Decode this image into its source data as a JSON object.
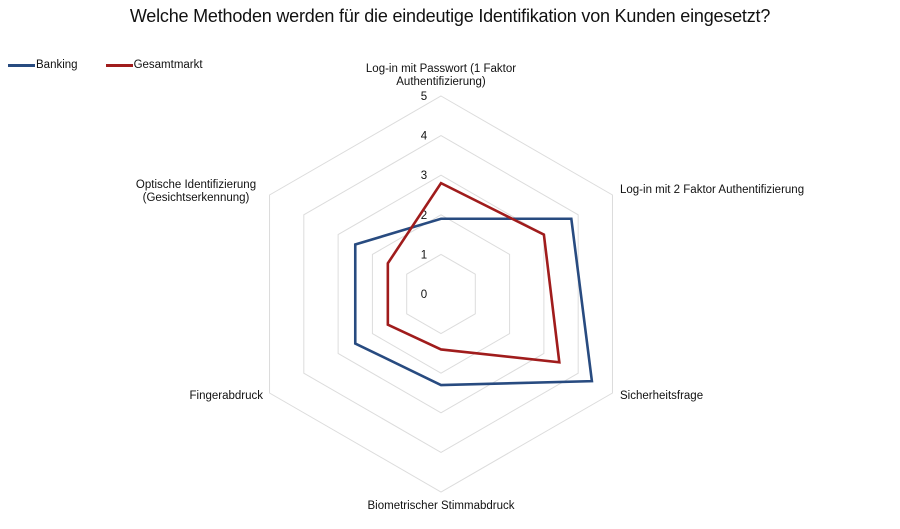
{
  "chart_data": {
    "type": "radar",
    "title": "Welche Methoden werden für die eindeutige Identifikation von Kunden eingesetzt?",
    "categories": [
      "Log-in mit Passwort (1 Faktor Authentifizierung)",
      "Log-in mit 2 Faktor Authentifizierung",
      "Sicherheitsfrage",
      "Biometrischer Stimmabdruck",
      "Fingerabdruck",
      "Optische Identifizierung (Gesichtserkennung)"
    ],
    "category_label_lines": [
      [
        "Log-in mit Passwort (1 Faktor",
        "Authentifizierung)"
      ],
      [
        "Log-in mit 2 Faktor Authentifizierung"
      ],
      [
        "Sicherheitsfrage"
      ],
      [
        "Biometrischer Stimmabdruck"
      ],
      [
        "Fingerabdruck"
      ],
      [
        "Optische Identifizierung",
        "(Gesichtserkennung)"
      ]
    ],
    "series": [
      {
        "name": "Banking",
        "color": "#284B80",
        "values": [
          1.9,
          3.8,
          4.4,
          2.3,
          2.5,
          2.5
        ]
      },
      {
        "name": "Gesamtmarkt",
        "color": "#A01C1C",
        "values": [
          2.8,
          3.0,
          3.45,
          1.4,
          1.55,
          1.55
        ]
      }
    ],
    "ticks": [
      "0",
      "1",
      "2",
      "3",
      "4",
      "5"
    ],
    "rlim": [
      0,
      5
    ],
    "grid": true,
    "legend_position": "top-left"
  },
  "legend": [
    {
      "label": "Banking",
      "color": "#284B80"
    },
    {
      "label": "Gesamtmarkt",
      "color": "#A01C1C"
    }
  ]
}
